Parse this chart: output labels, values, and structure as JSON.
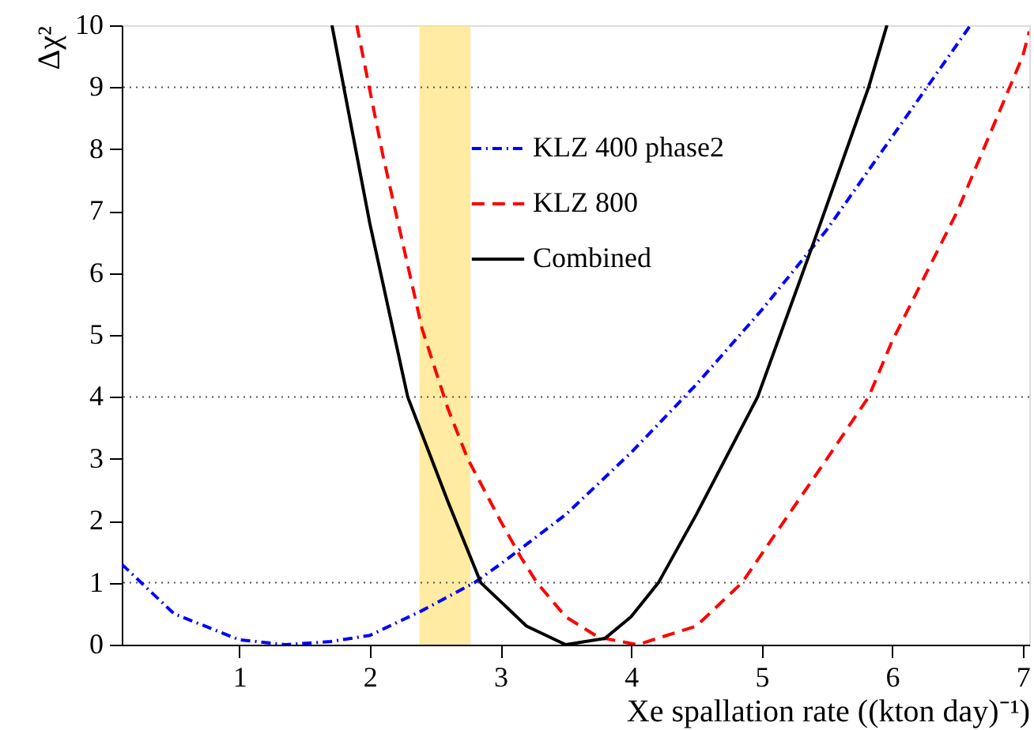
{
  "chart_data": {
    "type": "line",
    "xlabel": "Xe spallation rate ((kton day)⁻¹)",
    "ylabel": "Δχ²",
    "xlim": [
      0.1,
      7.05
    ],
    "ylim": [
      0,
      10
    ],
    "xticks": [
      1,
      2,
      3,
      4,
      5,
      6,
      7
    ],
    "yticks": [
      0,
      1,
      2,
      3,
      4,
      5,
      6,
      7,
      8,
      9,
      10
    ],
    "legend": "top right",
    "grid": false,
    "series": [
      {
        "name": "KLZ 400 phase2",
        "color": "#0000ff",
        "line_style": "dashdot",
        "x": [
          0.1,
          0.5,
          1.0,
          1.35,
          1.7,
          2.0,
          2.4,
          2.8,
          3.0,
          3.5,
          4.0,
          4.5,
          5.0,
          5.5,
          6.0,
          6.6
        ],
        "values": [
          1.3,
          0.5,
          0.08,
          0,
          0.05,
          0.15,
          0.55,
          1.0,
          1.3,
          2.1,
          3.1,
          4.2,
          5.4,
          6.7,
          8.2,
          10
        ]
      },
      {
        "name": "KLZ 800",
        "color": "#ff0000",
        "line_style": "dashed",
        "x": [
          1.9,
          2.1,
          2.4,
          2.6,
          2.75,
          3.0,
          3.16,
          3.28,
          3.5,
          3.75,
          4.05,
          4.5,
          4.85,
          5.5,
          5.82,
          6.0,
          6.5,
          7.0,
          7.05
        ],
        "values": [
          10,
          7.9,
          5.1,
          3.8,
          3.0,
          2.0,
          1.4,
          1.0,
          0.45,
          0.12,
          0,
          0.3,
          1.0,
          3.0,
          4.0,
          4.9,
          7.0,
          9.5,
          9.9
        ]
      },
      {
        "name": "Combined",
        "color": "#000000",
        "line_style": "solid",
        "x": [
          1.71,
          2.0,
          2.29,
          2.6,
          2.85,
          3.0,
          3.2,
          3.5,
          3.8,
          4.0,
          4.21,
          4.5,
          4.97,
          5.4,
          5.82,
          5.96
        ],
        "values": [
          10,
          6.8,
          4.0,
          2.3,
          1.0,
          0.7,
          0.3,
          0,
          0.1,
          0.45,
          1.0,
          2.1,
          4.0,
          6.5,
          9.0,
          10
        ]
      }
    ],
    "ref_lines": [
      {
        "axis": "y",
        "value": 1,
        "line_style": "dotted",
        "color": "#555555"
      },
      {
        "axis": "y",
        "value": 4,
        "line_style": "dotted",
        "color": "#555555"
      },
      {
        "axis": "y",
        "value": 9,
        "line_style": "dotted",
        "color": "#555555"
      }
    ],
    "bands": [
      {
        "axis": "x",
        "from": 2.38,
        "to": 2.77,
        "color": "#ffe27a"
      }
    ]
  }
}
